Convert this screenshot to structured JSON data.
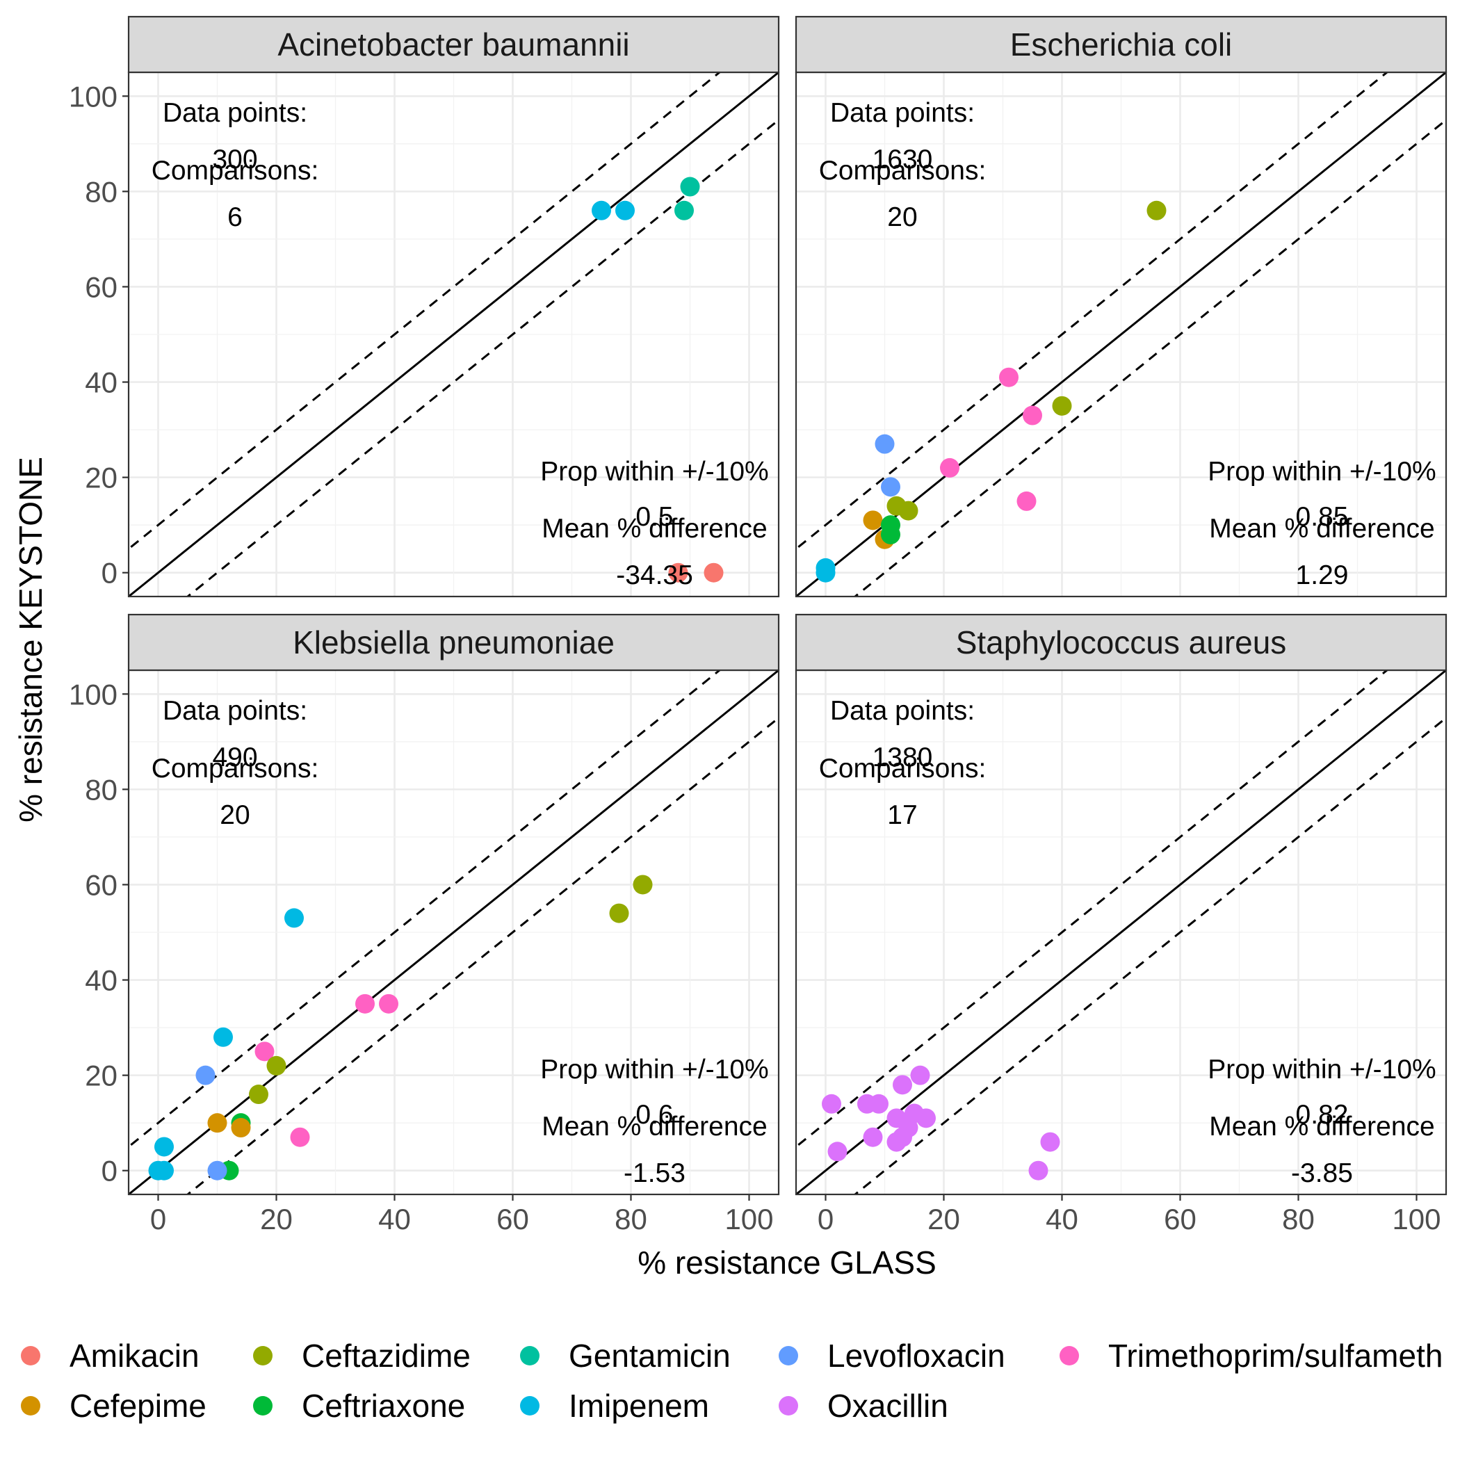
{
  "chart_data": {
    "type": "scatter",
    "xlabel": "% resistance GLASS",
    "ylabel": "% resistance KEYSTONE",
    "xlim": [
      -5,
      105
    ],
    "ylim": [
      -5,
      105
    ],
    "xticks": [
      0,
      20,
      40,
      60,
      80,
      100
    ],
    "yticks": [
      0,
      20,
      40,
      60,
      80,
      100
    ],
    "grid": true,
    "legend_position": "bottom",
    "reference_lines": {
      "identity": true,
      "band_offset": 10,
      "band_style": "dashed"
    },
    "annotation_labels": {
      "data_points": "Data points:",
      "comparisons": "Comparisons:",
      "prop_within": "Prop within +/-10%",
      "mean_diff": "Mean % difference"
    },
    "legend": [
      {
        "name": "Amikacin",
        "color": "#F8766D"
      },
      {
        "name": "Cefepime",
        "color": "#D39200"
      },
      {
        "name": "Ceftazidime",
        "color": "#93AA00"
      },
      {
        "name": "Ceftriaxone",
        "color": "#00BA38"
      },
      {
        "name": "Gentamicin",
        "color": "#00C19F"
      },
      {
        "name": "Imipenem",
        "color": "#00B9E3"
      },
      {
        "name": "Levofloxacin",
        "color": "#619CFF"
      },
      {
        "name": "Oxacillin",
        "color": "#DB72FB"
      },
      {
        "name": "Trimethoprim/sulfameth",
        "color": "#FF61C3"
      }
    ],
    "panels": [
      {
        "title": "Acinetobacter baumannii",
        "data_points": "300",
        "comparisons": "6",
        "prop_within": "0.5",
        "mean_diff": "-34.35",
        "points": [
          {
            "x": 75,
            "y": 76,
            "drug": "Imipenem"
          },
          {
            "x": 79,
            "y": 76,
            "drug": "Imipenem"
          },
          {
            "x": 90,
            "y": 81,
            "drug": "Gentamicin"
          },
          {
            "x": 89,
            "y": 76,
            "drug": "Gentamicin"
          },
          {
            "x": 88,
            "y": 0,
            "drug": "Amikacin"
          },
          {
            "x": 94,
            "y": 0,
            "drug": "Amikacin"
          }
        ]
      },
      {
        "title": "Escherichia coli",
        "data_points": "1630",
        "comparisons": "20",
        "prop_within": "0.85",
        "mean_diff": "1.29",
        "points": [
          {
            "x": 56,
            "y": 76,
            "drug": "Ceftazidime"
          },
          {
            "x": 40,
            "y": 35,
            "drug": "Ceftazidime"
          },
          {
            "x": 31,
            "y": 41,
            "drug": "Trimethoprim/sulfameth"
          },
          {
            "x": 35,
            "y": 33,
            "drug": "Trimethoprim/sulfameth"
          },
          {
            "x": 34,
            "y": 15,
            "drug": "Trimethoprim/sulfameth"
          },
          {
            "x": 21,
            "y": 22,
            "drug": "Trimethoprim/sulfameth"
          },
          {
            "x": 10,
            "y": 27,
            "drug": "Levofloxacin"
          },
          {
            "x": 11,
            "y": 18,
            "drug": "Levofloxacin"
          },
          {
            "x": 12,
            "y": 14,
            "drug": "Ceftazidime"
          },
          {
            "x": 14,
            "y": 13,
            "drug": "Ceftazidime"
          },
          {
            "x": 8,
            "y": 11,
            "drug": "Cefepime"
          },
          {
            "x": 10,
            "y": 7,
            "drug": "Cefepime"
          },
          {
            "x": 11,
            "y": 10,
            "drug": "Ceftriaxone"
          },
          {
            "x": 11,
            "y": 8,
            "drug": "Ceftriaxone"
          },
          {
            "x": 0,
            "y": 1,
            "drug": "Imipenem"
          },
          {
            "x": 0,
            "y": 0,
            "drug": "Imipenem"
          }
        ]
      },
      {
        "title": "Klebsiella pneumoniae",
        "data_points": "490",
        "comparisons": "20",
        "prop_within": "0.6",
        "mean_diff": "-1.53",
        "points": [
          {
            "x": 82,
            "y": 60,
            "drug": "Ceftazidime"
          },
          {
            "x": 78,
            "y": 54,
            "drug": "Ceftazidime"
          },
          {
            "x": 23,
            "y": 53,
            "drug": "Imipenem"
          },
          {
            "x": 35,
            "y": 35,
            "drug": "Trimethoprim/sulfameth"
          },
          {
            "x": 39,
            "y": 35,
            "drug": "Trimethoprim/sulfameth"
          },
          {
            "x": 11,
            "y": 28,
            "drug": "Imipenem"
          },
          {
            "x": 18,
            "y": 25,
            "drug": "Trimethoprim/sulfameth"
          },
          {
            "x": 20,
            "y": 22,
            "drug": "Ceftazidime"
          },
          {
            "x": 8,
            "y": 20,
            "drug": "Levofloxacin"
          },
          {
            "x": 17,
            "y": 16,
            "drug": "Ceftazidime"
          },
          {
            "x": 14,
            "y": 10,
            "drug": "Ceftriaxone"
          },
          {
            "x": 10,
            "y": 10,
            "drug": "Cefepime"
          },
          {
            "x": 14,
            "y": 9,
            "drug": "Cefepime"
          },
          {
            "x": 24,
            "y": 7,
            "drug": "Trimethoprim/sulfameth"
          },
          {
            "x": 1,
            "y": 5,
            "drug": "Imipenem"
          },
          {
            "x": 0,
            "y": 0,
            "drug": "Imipenem"
          },
          {
            "x": 1,
            "y": 0,
            "drug": "Imipenem"
          },
          {
            "x": 12,
            "y": 0,
            "drug": "Ceftriaxone"
          },
          {
            "x": 10,
            "y": 0,
            "drug": "Levofloxacin"
          }
        ]
      },
      {
        "title": "Staphylococcus aureus",
        "data_points": "1380",
        "comparisons": "17",
        "prop_within": "0.82",
        "mean_diff": "-3.85",
        "points": [
          {
            "x": 16,
            "y": 20,
            "drug": "Oxacillin"
          },
          {
            "x": 13,
            "y": 18,
            "drug": "Oxacillin"
          },
          {
            "x": 1,
            "y": 14,
            "drug": "Oxacillin"
          },
          {
            "x": 7,
            "y": 14,
            "drug": "Oxacillin"
          },
          {
            "x": 9,
            "y": 14,
            "drug": "Oxacillin"
          },
          {
            "x": 15,
            "y": 12,
            "drug": "Oxacillin"
          },
          {
            "x": 12,
            "y": 11,
            "drug": "Oxacillin"
          },
          {
            "x": 17,
            "y": 11,
            "drug": "Oxacillin"
          },
          {
            "x": 14,
            "y": 9,
            "drug": "Oxacillin"
          },
          {
            "x": 8,
            "y": 7,
            "drug": "Oxacillin"
          },
          {
            "x": 13,
            "y": 7,
            "drug": "Oxacillin"
          },
          {
            "x": 12,
            "y": 6,
            "drug": "Oxacillin"
          },
          {
            "x": 38,
            "y": 6,
            "drug": "Oxacillin"
          },
          {
            "x": 2,
            "y": 4,
            "drug": "Oxacillin"
          },
          {
            "x": 36,
            "y": 0,
            "drug": "Oxacillin"
          }
        ]
      }
    ]
  }
}
